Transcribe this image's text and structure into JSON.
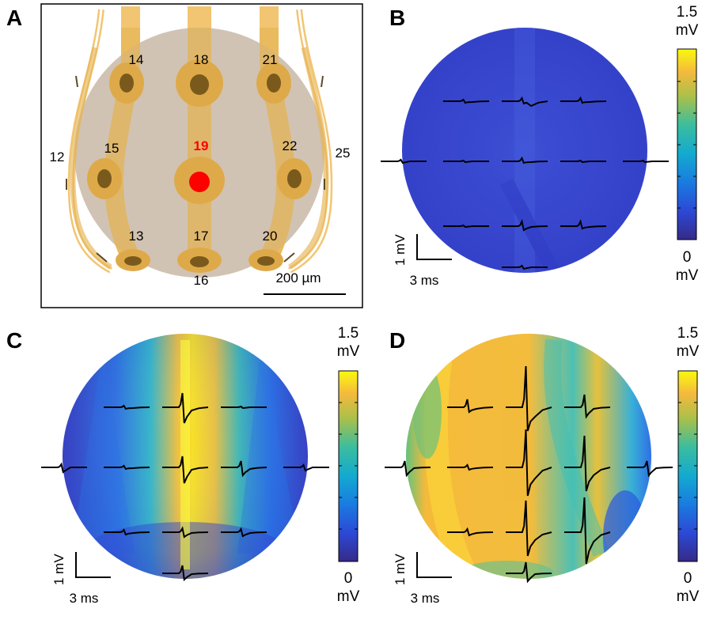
{
  "panel_labels": {
    "a": "A",
    "b": "B",
    "c": "C",
    "d": "D"
  },
  "panel_a": {
    "electrodes": [
      "14",
      "18",
      "21",
      "15",
      "19",
      "22",
      "13",
      "17",
      "20",
      "16",
      "12",
      "25"
    ],
    "highlighted_electrode": "19",
    "scale_bar_label": "200 µm",
    "colors": {
      "lead": "#f2c572",
      "pad": "#d9a83f",
      "site": "#7a5a1c",
      "tissue": "#c9b9a6",
      "highlight": "#ff0000"
    }
  },
  "colorbar": {
    "max_value": "1.5",
    "max_unit": "mV",
    "min_value": "0",
    "min_unit": "mV",
    "colormap": "parula"
  },
  "scalebar": {
    "vertical": "1 mV",
    "horizontal": "3 ms"
  },
  "heatmaps": {
    "b": "uniform low amplitude (dark blue)",
    "c": "high amplitude along central column (yellow), low at periphery",
    "d": "high amplitude over most of the array (yellow-orange)"
  }
}
